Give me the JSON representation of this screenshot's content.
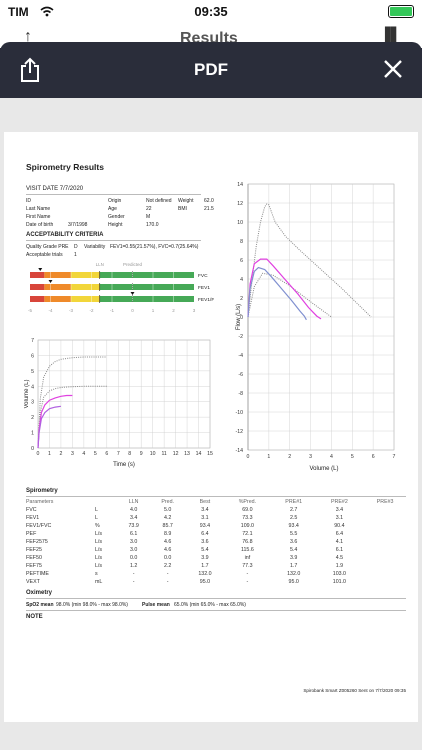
{
  "status": {
    "carrier": "TIM",
    "time": "09:35"
  },
  "behind": {
    "title": "Results"
  },
  "header": {
    "title": "PDF",
    "share_icon": "share-icon",
    "close_icon": "close-icon"
  },
  "report": {
    "title": "Spirometry Results",
    "visit_date": "VISIT DATE 7/7/2020",
    "patient": {
      "id_label": "ID",
      "last_name_label": "Last Name",
      "first_name_label": "First Name",
      "dob_label": "Date of birth",
      "dob": "3/7/1998",
      "origin_label": "Origin",
      "origin": "Not defined",
      "age_label": "Age",
      "age": "22",
      "gender_label": "Gender",
      "gender": "M",
      "height_label": "Height",
      "height": "170.0",
      "weight_label": "Weight",
      "weight": "62.0",
      "bmi_label": "BMI",
      "bmi": "21.5"
    },
    "acceptability": {
      "heading": "ACCEPTABILITY CRITERIA",
      "quality_label": "Quality Grade PRE",
      "quality_value": "D",
      "variability_label": "Variability",
      "variability_value": "FEV1=0.55(21.57%), FVC=0.7(25.64%)",
      "trials_label": "Acceptable trials",
      "trials_value": "1"
    },
    "zbar": {
      "lln_label": "LLN",
      "predicted_label": "Predicted",
      "rows": [
        {
          "label": "FVC",
          "marker": -4.5
        },
        {
          "label": "FEV1",
          "marker": -4
        },
        {
          "label": "FEV1/FVC",
          "marker": 0
        }
      ],
      "ticks": [
        "-5",
        "-4",
        "-3",
        "-2",
        "-1",
        "0",
        "1",
        "2",
        "3"
      ]
    },
    "spirometry_heading": "Spirometry",
    "table": {
      "headers": [
        "Parameters",
        "",
        "LLN",
        "Pred.",
        "Best",
        "%Pred.",
        "PRE#1",
        "PRE#2",
        "PRE#3"
      ],
      "rows": [
        [
          "FVC",
          "L",
          "4.0",
          "5.0",
          "3.4",
          "69.0",
          "2.7",
          "3.4",
          ""
        ],
        [
          "FEV1",
          "L",
          "3.4",
          "4.2",
          "3.1",
          "73.3",
          "2.5",
          "3.1",
          ""
        ],
        [
          "FEV1/FVC",
          "%",
          "73.9",
          "85.7",
          "93.4",
          "109.0",
          "93.4",
          "90.4",
          ""
        ],
        [
          "PEF",
          "L/s",
          "6.1",
          "8.9",
          "6.4",
          "72.1",
          "5.5",
          "6.4",
          ""
        ],
        [
          "FEF2575",
          "L/s",
          "3.0",
          "4.6",
          "3.6",
          "76.8",
          "3.6",
          "4.1",
          ""
        ],
        [
          "FEF25",
          "L/s",
          "3.0",
          "4.6",
          "5.4",
          "115.6",
          "5.4",
          "6.1",
          ""
        ],
        [
          "FEF50",
          "L/s",
          "0.0",
          "0.0",
          "3.9",
          "inf",
          "3.9",
          "4.5",
          ""
        ],
        [
          "FEF75",
          "L/s",
          "1.2",
          "2.2",
          "1.7",
          "77.3",
          "1.7",
          "1.9",
          ""
        ],
        [
          "PEFTIME",
          "s",
          "-",
          "-",
          "132.0",
          "-",
          "132.0",
          "103.0",
          ""
        ],
        [
          "VEXT",
          "mL",
          "-",
          "-",
          "95.0",
          "-",
          "95.0",
          "101.0",
          ""
        ]
      ]
    },
    "oximetry_heading": "Oximetry",
    "spo2_label": "SpO2 mean",
    "spo2_value": "98.0% (min 98.0% - max 98.0%)",
    "pulse_label": "Pulse mean",
    "pulse_value": "65.0% (min 65.0% - max 65.0%)",
    "note_heading": "NOTE",
    "footer": "Spirobank Smart Z005260 Sent on 7/7/2020 09:35"
  },
  "chart_data": [
    {
      "type": "line",
      "title": "",
      "xlabel": "Time (s)",
      "ylabel": "Volume (L)",
      "xlim": [
        0,
        15
      ],
      "ylim": [
        0,
        7
      ],
      "xticks": [
        "0",
        "1",
        "2",
        "3",
        "4",
        "5",
        "6",
        "7",
        "8",
        "9",
        "10",
        "11",
        "12",
        "13",
        "14",
        "15"
      ],
      "yticks": [
        "0",
        "1",
        "2",
        "3",
        "4",
        "5",
        "6",
        "7"
      ],
      "series": [
        {
          "style": "dotted",
          "color": "#888888",
          "x": [
            0,
            0.2,
            0.5,
            1,
            1.5,
            2,
            3,
            4,
            5,
            6
          ],
          "y": [
            0,
            3.2,
            4.6,
            5.3,
            5.6,
            5.75,
            5.85,
            5.9,
            5.9,
            5.9
          ]
        },
        {
          "style": "dotted",
          "color": "#888888",
          "x": [
            0,
            0.2,
            0.5,
            1,
            1.5,
            2,
            3,
            4,
            5,
            6
          ],
          "y": [
            0,
            2.3,
            3.3,
            3.7,
            3.85,
            3.92,
            3.97,
            4.0,
            4.0,
            4.0
          ]
        },
        {
          "style": "solid",
          "color": "#e040e0",
          "x": [
            0,
            0.1,
            0.3,
            0.6,
            1,
            1.5,
            2,
            2.5,
            3
          ],
          "y": [
            0,
            1.2,
            2.3,
            2.8,
            3.1,
            3.25,
            3.35,
            3.4,
            3.4
          ]
        },
        {
          "style": "solid",
          "color": "#b060e0",
          "x": [
            0,
            0.1,
            0.3,
            0.6,
            1,
            1.5,
            2
          ],
          "y": [
            0,
            1.0,
            1.9,
            2.3,
            2.55,
            2.65,
            2.7
          ]
        }
      ]
    },
    {
      "type": "line",
      "title": "",
      "xlabel": "Volume (L)",
      "ylabel": "Flow (L/s)",
      "xlim": [
        0,
        7
      ],
      "ylim": [
        -14,
        14
      ],
      "xticks": [
        "0",
        "1",
        "2",
        "3",
        "4",
        "5",
        "6",
        "7"
      ],
      "yticks": [
        "14",
        "12",
        "10",
        "8",
        "6",
        "4",
        "2",
        "0",
        "-2",
        "-4",
        "-6",
        "-8",
        "-10",
        "-12",
        "-14"
      ],
      "series": [
        {
          "style": "dotted",
          "color": "#888888",
          "x": [
            0,
            0.2,
            0.4,
            0.6,
            0.8,
            0.9,
            1.0,
            1.3,
            1.8,
            2.5,
            3.5,
            4.5,
            5.2,
            5.9
          ],
          "y": [
            0,
            4,
            7.5,
            10,
            11.6,
            11.9,
            11.8,
            10,
            8.5,
            7,
            5,
            3,
            1.5,
            0
          ]
        },
        {
          "style": "dotted",
          "color": "#888888",
          "x": [
            0,
            0.3,
            0.7,
            1.2,
            2,
            3,
            4
          ],
          "y": [
            0,
            3.2,
            4.6,
            4.4,
            3.3,
            1.6,
            0
          ]
        },
        {
          "style": "solid",
          "color": "#e040e0",
          "x": [
            0,
            0.1,
            0.3,
            0.6,
            0.9,
            1.2,
            1.8,
            2.4,
            2.9,
            3.3,
            3.5
          ],
          "y": [
            0,
            3.5,
            5.6,
            6.1,
            6.1,
            5.4,
            3.9,
            2.4,
            1.0,
            0.1,
            -0.2
          ]
        },
        {
          "style": "solid",
          "color": "#8090d0",
          "x": [
            0,
            0.1,
            0.3,
            0.5,
            0.8,
            1.1,
            1.6,
            2.1,
            2.5,
            2.7,
            2.8
          ],
          "y": [
            0,
            3,
            4.8,
            5.2,
            5.0,
            4.3,
            3.0,
            1.7,
            0.6,
            0.1,
            -0.3
          ]
        }
      ]
    }
  ]
}
